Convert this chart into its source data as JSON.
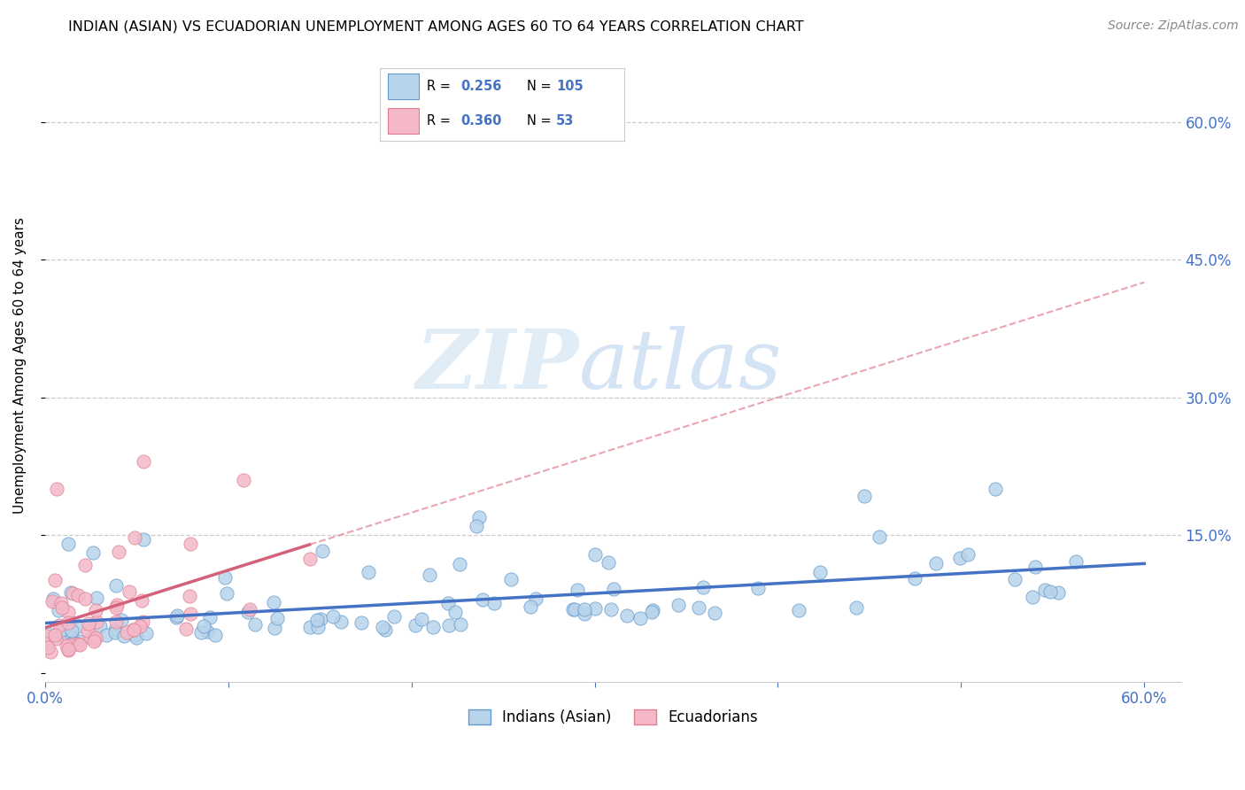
{
  "title": "INDIAN (ASIAN) VS ECUADORIAN UNEMPLOYMENT AMONG AGES 60 TO 64 YEARS CORRELATION CHART",
  "source": "Source: ZipAtlas.com",
  "ylabel": "Unemployment Among Ages 60 to 64 years",
  "xlim": [
    0.0,
    0.62
  ],
  "ylim": [
    -0.01,
    0.68
  ],
  "hlines": [
    0.15,
    0.3,
    0.45,
    0.6
  ],
  "R_indian": 0.256,
  "N_indian": 105,
  "R_ecuadorian": 0.36,
  "N_ecuadorian": 53,
  "indian_color": "#b8d4ea",
  "indian_edge_color": "#6699cc",
  "indian_line_color": "#4472c4",
  "ecuadorian_color": "#f4b8c8",
  "ecuadorian_edge_color": "#e08090",
  "ecuadorian_line_color": "#d4607a",
  "legend_text_color": "#4472c4",
  "background_color": "#ffffff",
  "title_fontsize": 11.5,
  "source_fontsize": 10,
  "tick_fontsize": 12,
  "ylabel_fontsize": 11
}
